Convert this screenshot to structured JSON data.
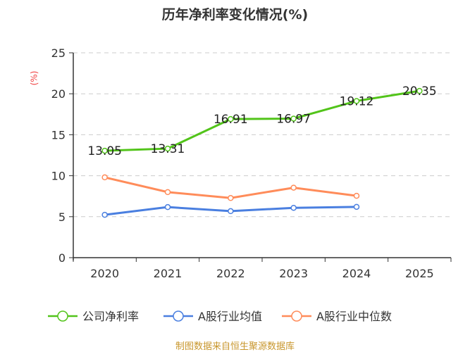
{
  "chart_data": {
    "type": "line",
    "title": "历年净利率变化情况(%)",
    "ylabel": "(%)",
    "categories": [
      "2020",
      "2021",
      "2022",
      "2023",
      "2024",
      "2025"
    ],
    "ylim": [
      0,
      25
    ],
    "yticks": [
      0,
      5,
      10,
      15,
      20,
      25
    ],
    "grid": true,
    "legend_position": "bottom",
    "series": [
      {
        "name": "公司净利率",
        "color": "#52c41a",
        "values": [
          13.05,
          13.31,
          16.91,
          16.97,
          19.12,
          20.35
        ],
        "labels": [
          "13.05",
          "13.31",
          "16.91",
          "16.97",
          "19.12",
          "20.35"
        ]
      },
      {
        "name": "A股行业均值",
        "color": "#4a7fe0",
        "values": [
          5.23,
          6.17,
          5.68,
          6.08,
          6.2,
          null
        ]
      },
      {
        "name": "A股行业中位数",
        "color": "#ff8c5a",
        "values": [
          9.8,
          8.0,
          7.28,
          8.54,
          7.55,
          null
        ]
      }
    ]
  },
  "footer": "制图数据来自恒生聚源数据库"
}
